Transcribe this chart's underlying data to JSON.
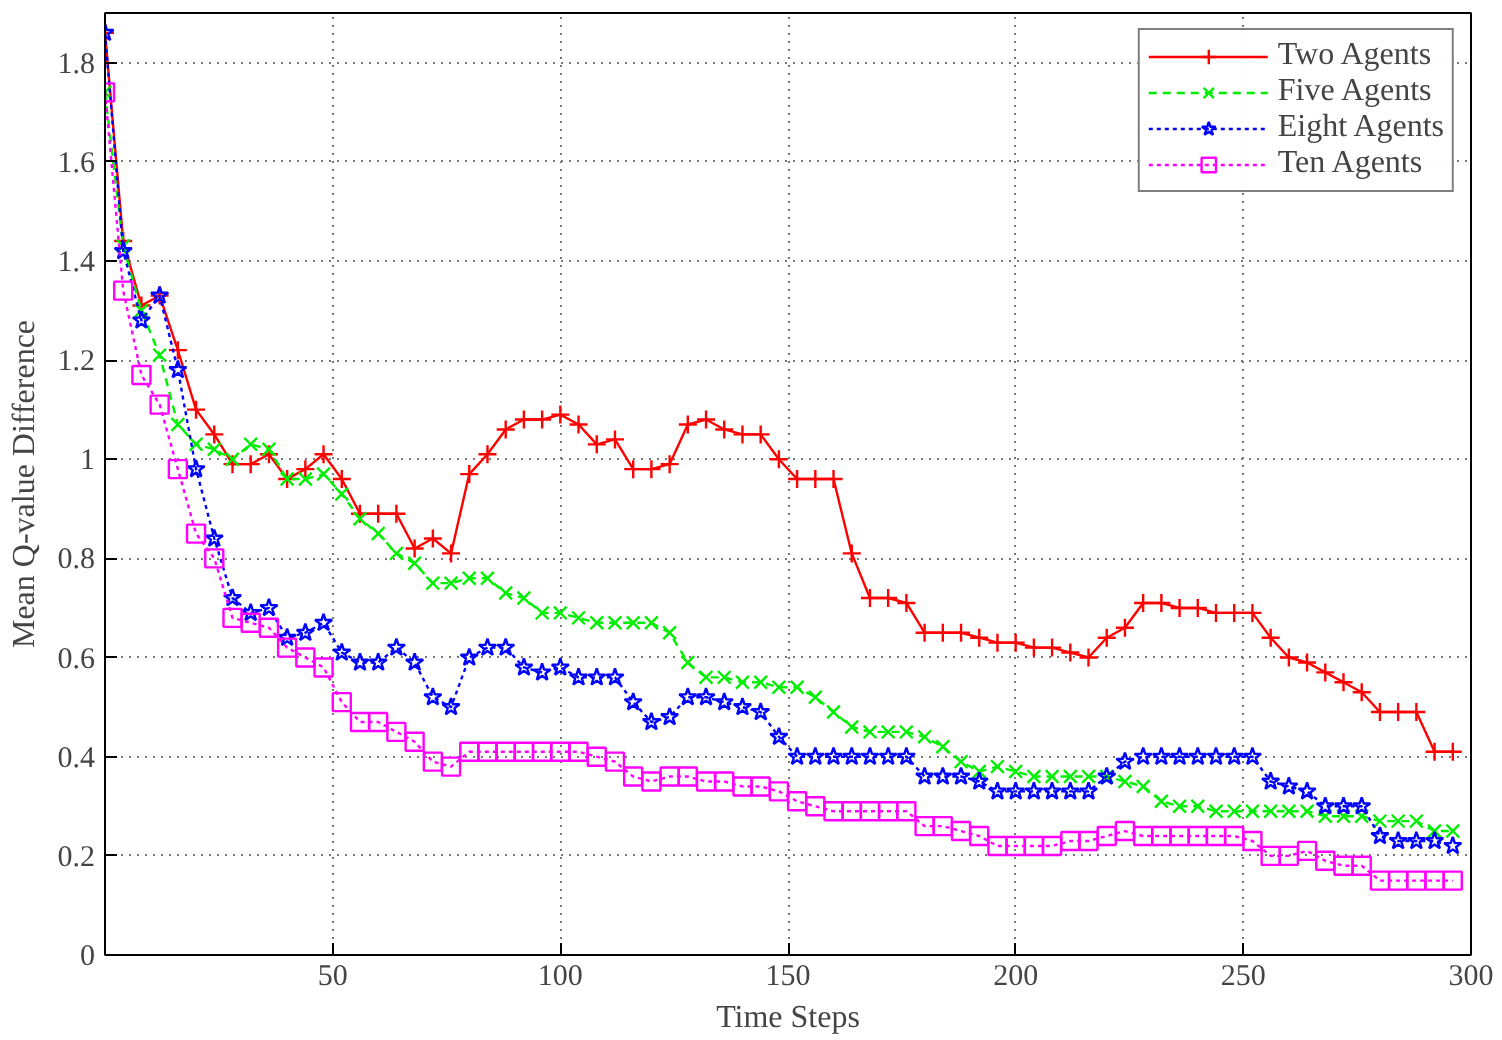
{
  "chart_data": {
    "type": "line",
    "xlabel": "Time Steps",
    "ylabel": "Mean Q-value Difference",
    "x": [
      0,
      4,
      8,
      12,
      16,
      20,
      24,
      28,
      32,
      36,
      40,
      44,
      48,
      52,
      56,
      60,
      64,
      68,
      72,
      76,
      80,
      84,
      88,
      92,
      96,
      100,
      104,
      108,
      112,
      116,
      120,
      124,
      128,
      132,
      136,
      140,
      144,
      148,
      152,
      156,
      160,
      164,
      168,
      172,
      176,
      180,
      184,
      188,
      192,
      196,
      200,
      204,
      208,
      212,
      216,
      220,
      224,
      228,
      232,
      236,
      240,
      244,
      248,
      252,
      256,
      260,
      264,
      268,
      272,
      276,
      280,
      284,
      288,
      292,
      296
    ],
    "series": [
      {
        "name": "Two Agents",
        "color": "#ff0000",
        "marker": "cross",
        "line_style": "solid",
        "values": [
          1.86,
          1.44,
          1.31,
          1.33,
          1.22,
          1.1,
          1.05,
          0.99,
          0.99,
          1.01,
          0.96,
          0.98,
          1.01,
          0.96,
          0.89,
          0.89,
          0.89,
          0.82,
          0.84,
          0.81,
          0.97,
          1.01,
          1.06,
          1.08,
          1.08,
          1.09,
          1.07,
          1.03,
          1.04,
          0.98,
          0.98,
          0.99,
          1.07,
          1.08,
          1.06,
          1.05,
          1.05,
          1.0,
          0.96,
          0.96,
          0.96,
          0.81,
          0.72,
          0.72,
          0.71,
          0.65,
          0.65,
          0.65,
          0.64,
          0.63,
          0.63,
          0.62,
          0.62,
          0.61,
          0.6,
          0.64,
          0.66,
          0.71,
          0.71,
          0.7,
          0.7,
          0.69,
          0.69,
          0.69,
          0.64,
          0.6,
          0.59,
          0.57,
          0.55,
          0.53,
          0.49,
          0.49,
          0.49,
          0.41,
          0.41
        ]
      },
      {
        "name": "Five Agents",
        "color": "#00ee00",
        "marker": "x",
        "line_style": "dashed",
        "values": [
          1.74,
          1.43,
          1.3,
          1.21,
          1.07,
          1.03,
          1.02,
          1.0,
          1.03,
          1.02,
          0.96,
          0.96,
          0.97,
          0.93,
          0.88,
          0.85,
          0.81,
          0.79,
          0.75,
          0.75,
          0.76,
          0.76,
          0.73,
          0.72,
          0.69,
          0.69,
          0.68,
          0.67,
          0.67,
          0.67,
          0.67,
          0.65,
          0.59,
          0.56,
          0.56,
          0.55,
          0.55,
          0.54,
          0.54,
          0.52,
          0.49,
          0.46,
          0.45,
          0.45,
          0.45,
          0.44,
          0.42,
          0.39,
          0.37,
          0.38,
          0.37,
          0.36,
          0.36,
          0.36,
          0.36,
          0.36,
          0.35,
          0.34,
          0.31,
          0.3,
          0.3,
          0.29,
          0.29,
          0.29,
          0.29,
          0.29,
          0.29,
          0.28,
          0.28,
          0.28,
          0.27,
          0.27,
          0.27,
          0.25,
          0.25
        ]
      },
      {
        "name": "Eight Agents",
        "color": "#0000ff",
        "marker": "star",
        "line_style": "dotted",
        "values": [
          1.86,
          1.42,
          1.28,
          1.33,
          1.18,
          0.98,
          0.84,
          0.72,
          0.69,
          0.7,
          0.64,
          0.65,
          0.67,
          0.61,
          0.59,
          0.59,
          0.62,
          0.59,
          0.52,
          0.5,
          0.6,
          0.62,
          0.62,
          0.58,
          0.57,
          0.58,
          0.56,
          0.56,
          0.56,
          0.51,
          0.47,
          0.48,
          0.52,
          0.52,
          0.51,
          0.5,
          0.49,
          0.44,
          0.4,
          0.4,
          0.4,
          0.4,
          0.4,
          0.4,
          0.4,
          0.36,
          0.36,
          0.36,
          0.35,
          0.33,
          0.33,
          0.33,
          0.33,
          0.33,
          0.33,
          0.36,
          0.39,
          0.4,
          0.4,
          0.4,
          0.4,
          0.4,
          0.4,
          0.4,
          0.35,
          0.34,
          0.33,
          0.3,
          0.3,
          0.3,
          0.24,
          0.23,
          0.23,
          0.23,
          0.22
        ]
      },
      {
        "name": "Ten Agents",
        "color": "#ff00ff",
        "marker": "square",
        "line_style": "dotted",
        "values": [
          1.74,
          1.34,
          1.17,
          1.11,
          0.98,
          0.85,
          0.8,
          0.68,
          0.67,
          0.66,
          0.62,
          0.6,
          0.58,
          0.51,
          0.47,
          0.47,
          0.45,
          0.43,
          0.39,
          0.38,
          0.41,
          0.41,
          0.41,
          0.41,
          0.41,
          0.41,
          0.41,
          0.4,
          0.39,
          0.36,
          0.35,
          0.36,
          0.36,
          0.35,
          0.35,
          0.34,
          0.34,
          0.33,
          0.31,
          0.3,
          0.29,
          0.29,
          0.29,
          0.29,
          0.29,
          0.26,
          0.26,
          0.25,
          0.24,
          0.22,
          0.22,
          0.22,
          0.22,
          0.23,
          0.23,
          0.24,
          0.25,
          0.24,
          0.24,
          0.24,
          0.24,
          0.24,
          0.24,
          0.23,
          0.2,
          0.2,
          0.21,
          0.19,
          0.18,
          0.18,
          0.15,
          0.15,
          0.15,
          0.15,
          0.15
        ]
      }
    ],
    "xlim": [
      0,
      300
    ],
    "xticks": [
      50,
      100,
      150,
      200,
      250,
      300
    ],
    "ylim": [
      0,
      1.9
    ],
    "yticks": [
      0,
      0.2,
      0.4,
      0.6,
      0.8,
      1,
      1.2,
      1.4,
      1.6,
      1.8
    ],
    "grid": true,
    "legend": "top right"
  }
}
